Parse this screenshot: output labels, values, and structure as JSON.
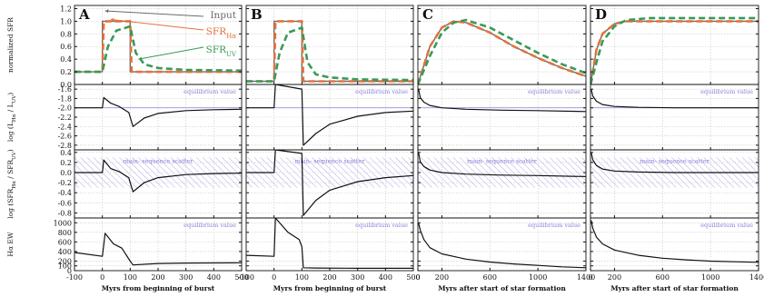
{
  "chart_data": {
    "type": "line",
    "rows": [
      {
        "ylabel": "normalized SFR",
        "ylim": [
          0,
          1.25
        ],
        "ticks": [
          0.0,
          0.2,
          0.4,
          0.6,
          0.8,
          1.0,
          1.2
        ],
        "tick_labels": [
          "0.0",
          "0.2",
          "0.4",
          "0.6",
          "0.8",
          "1.0",
          "1.2"
        ],
        "annotation": ""
      },
      {
        "ylabel": "log (LHα / LUV)",
        "ylim": [
          -2.9,
          -1.5
        ],
        "invert": true,
        "ticks": [
          -1.6,
          -1.8,
          -2.0,
          -2.2,
          -2.4,
          -2.6,
          -2.8
        ],
        "tick_labels": [
          "-1.6",
          "-1.8",
          "-2.0",
          "-2.2",
          "-2.4",
          "-2.6",
          "-2.8"
        ],
        "hline": -2.0,
        "annotation": "equilibrium value"
      },
      {
        "ylabel": "log (SFRHα / SFRUV)",
        "ylim": [
          -0.9,
          0.45
        ],
        "ticks": [
          0.4,
          0.2,
          0.0,
          -0.2,
          -0.4,
          -0.6,
          -0.8
        ],
        "tick_labels": [
          "0.4",
          "0.2",
          "0.0",
          "-0.2",
          "-0.4",
          "-0.6",
          "-0.8"
        ],
        "band": [
          -0.3,
          0.3
        ],
        "annotation": "main- sequence scatter"
      },
      {
        "ylabel": "Hα EW",
        "ylim": [
          0,
          1100
        ],
        "ticks": [
          0,
          100,
          200,
          400,
          600,
          800,
          1000
        ],
        "tick_labels": [
          "0",
          "100",
          "200",
          "400",
          "600",
          "800",
          "1000"
        ],
        "annotation": "equilibrium value"
      }
    ],
    "panels": [
      {
        "letter": "A",
        "xlim": [
          -100,
          500
        ],
        "xticks": [
          -100,
          0,
          100,
          200,
          300,
          400,
          500
        ],
        "xtick_labels": [
          "-100",
          "0",
          "100",
          "200",
          "300",
          "400",
          "500"
        ],
        "xlabel": "Myrs from beginning of burst",
        "series": [
          {
            "row": 0,
            "role": "input",
            "color": "#6a6a6a",
            "style": "solid",
            "x": [
              -100,
              0,
              0,
              100,
              100,
              500
            ],
            "y": [
              0.2,
              0.2,
              1.0,
              1.0,
              0.2,
              0.2
            ]
          },
          {
            "row": 0,
            "role": "halpha",
            "color": "#e8703a",
            "style": "dashed",
            "x": [
              -100,
              0,
              5,
              100,
              105,
              500
            ],
            "y": [
              0.2,
              0.2,
              1.0,
              1.0,
              0.2,
              0.2
            ]
          },
          {
            "row": 0,
            "role": "uv",
            "color": "#3a9a58",
            "style": "dashed",
            "x": [
              -100,
              0,
              20,
              50,
              100,
              120,
              150,
              200,
              300,
              500
            ],
            "y": [
              0.2,
              0.2,
              0.6,
              0.85,
              0.92,
              0.5,
              0.32,
              0.26,
              0.23,
              0.22
            ]
          },
          {
            "row": 1,
            "role": "ratio",
            "color": "#111111",
            "style": "solid",
            "x": [
              -100,
              0,
              5,
              30,
              60,
              95,
              100,
              110,
              150,
              200,
              300,
              400,
              500
            ],
            "y": [
              -2.0,
              -2.0,
              -1.78,
              -1.9,
              -1.97,
              -2.1,
              -2.2,
              -2.4,
              -2.22,
              -2.12,
              -2.06,
              -2.04,
              -2.03
            ]
          },
          {
            "row": 2,
            "role": "ratio",
            "color": "#111111",
            "style": "solid",
            "x": [
              -100,
              0,
              5,
              30,
              60,
              95,
              100,
              110,
              150,
              200,
              300,
              400,
              500
            ],
            "y": [
              0.0,
              0.0,
              0.25,
              0.08,
              0.02,
              -0.1,
              -0.2,
              -0.38,
              -0.2,
              -0.1,
              -0.04,
              -0.02,
              -0.01
            ]
          },
          {
            "row": 3,
            "role": "ew",
            "color": "#111111",
            "style": "solid",
            "x": [
              -100,
              0,
              10,
              40,
              70,
              100,
              110,
              200,
              300,
              500
            ],
            "y": [
              380,
              300,
              780,
              560,
              470,
              200,
              120,
              150,
              160,
              165
            ]
          }
        ]
      },
      {
        "letter": "B",
        "xlim": [
          -100,
          500
        ],
        "xticks": [
          -100,
          0,
          100,
          200,
          300,
          400,
          500
        ],
        "xtick_labels": [
          "-100",
          "0",
          "100",
          "200",
          "300",
          "400",
          "500"
        ],
        "xlabel": "Myrs from beginning of burst",
        "series": [
          {
            "row": 0,
            "role": "input",
            "color": "#6a6a6a",
            "style": "solid",
            "x": [
              -100,
              0,
              0,
              100,
              100,
              500
            ],
            "y": [
              0.05,
              0.05,
              1.0,
              1.0,
              0.05,
              0.05
            ]
          },
          {
            "row": 0,
            "role": "halpha",
            "color": "#e8703a",
            "style": "dashed",
            "x": [
              -100,
              0,
              5,
              100,
              105,
              500
            ],
            "y": [
              0.05,
              0.05,
              1.0,
              1.0,
              0.05,
              0.05
            ]
          },
          {
            "row": 0,
            "role": "uv",
            "color": "#3a9a58",
            "style": "dashed",
            "x": [
              -100,
              0,
              20,
              50,
              100,
              120,
              150,
              200,
              300,
              500
            ],
            "y": [
              0.05,
              0.05,
              0.5,
              0.82,
              0.9,
              0.35,
              0.16,
              0.11,
              0.08,
              0.07
            ]
          },
          {
            "row": 1,
            "role": "ratio",
            "color": "#111111",
            "style": "solid",
            "x": [
              -100,
              0,
              5,
              100,
              105,
              150,
              200,
              300,
              400,
              500
            ],
            "y": [
              -2.0,
              -2.0,
              -1.5,
              -1.6,
              -2.8,
              -2.55,
              -2.35,
              -2.18,
              -2.1,
              -2.07
            ]
          },
          {
            "row": 2,
            "role": "ratio",
            "color": "#111111",
            "style": "solid",
            "x": [
              -100,
              0,
              5,
              100,
              105,
              150,
              200,
              300,
              400,
              500
            ],
            "y": [
              0.0,
              0.0,
              0.45,
              0.38,
              -0.85,
              -0.55,
              -0.35,
              -0.18,
              -0.1,
              -0.06
            ]
          },
          {
            "row": 3,
            "role": "ew",
            "color": "#111111",
            "style": "solid",
            "x": [
              -100,
              0,
              5,
              50,
              90,
              100,
              105,
              150,
              300,
              500
            ],
            "y": [
              320,
              300,
              1100,
              800,
              650,
              500,
              60,
              55,
              50,
              50
            ]
          }
        ]
      },
      {
        "letter": "C",
        "xlim": [
          0,
          1400
        ],
        "xticks": [
          0,
          200,
          600,
          1000,
          1400
        ],
        "xtick_labels": [
          "0",
          "200",
          "600",
          "1000",
          "1400"
        ],
        "xlabel": "Myrs after start of star formation",
        "series": [
          {
            "row": 0,
            "role": "input",
            "color": "#6a6a6a",
            "style": "solid",
            "x": [
              0,
              100,
              200,
              300,
              400,
              600,
              800,
              1000,
              1200,
              1400
            ],
            "y": [
              0.0,
              0.6,
              0.9,
              1.0,
              0.98,
              0.82,
              0.6,
              0.42,
              0.26,
              0.13
            ]
          },
          {
            "row": 0,
            "role": "halpha",
            "color": "#e8703a",
            "style": "dashed",
            "x": [
              0,
              100,
              200,
              300,
              400,
              600,
              800,
              1000,
              1200,
              1400
            ],
            "y": [
              0.0,
              0.6,
              0.9,
              1.0,
              0.98,
              0.82,
              0.6,
              0.42,
              0.26,
              0.13
            ]
          },
          {
            "row": 0,
            "role": "uv",
            "color": "#3a9a58",
            "style": "dashed",
            "x": [
              0,
              100,
              200,
              300,
              400,
              600,
              800,
              1000,
              1200,
              1400
            ],
            "y": [
              0.0,
              0.45,
              0.82,
              0.98,
              1.02,
              0.9,
              0.7,
              0.5,
              0.32,
              0.18
            ]
          },
          {
            "row": 1,
            "role": "ratio",
            "color": "#111111",
            "style": "solid",
            "x": [
              5,
              20,
              50,
              100,
              200,
              400,
              700,
              1000,
              1400
            ],
            "y": [
              -1.6,
              -1.78,
              -1.88,
              -1.95,
              -2.0,
              -2.03,
              -2.05,
              -2.06,
              -2.08
            ]
          },
          {
            "row": 2,
            "role": "ratio",
            "color": "#111111",
            "style": "solid",
            "x": [
              5,
              20,
              50,
              100,
              200,
              400,
              700,
              1000,
              1400
            ],
            "y": [
              0.4,
              0.22,
              0.12,
              0.05,
              0.0,
              -0.03,
              -0.05,
              -0.06,
              -0.08
            ]
          },
          {
            "row": 3,
            "role": "ew",
            "color": "#111111",
            "style": "solid",
            "x": [
              5,
              20,
              50,
              100,
              200,
              400,
              600,
              800,
              1000,
              1200,
              1400
            ],
            "y": [
              1000,
              850,
              650,
              480,
              350,
              240,
              180,
              140,
              110,
              80,
              60
            ]
          }
        ]
      },
      {
        "letter": "D",
        "xlim": [
          0,
          1400
        ],
        "xticks": [
          0,
          200,
          600,
          1000,
          1400
        ],
        "xtick_labels": [
          "0",
          "200",
          "600",
          "1000",
          "1400"
        ],
        "xlabel": "Myrs after start of star formation",
        "series": [
          {
            "row": 0,
            "role": "input",
            "color": "#6a6a6a",
            "style": "solid",
            "x": [
              0,
              50,
              100,
              200,
              300,
              500,
              800,
              1400
            ],
            "y": [
              0.0,
              0.55,
              0.8,
              0.96,
              1.0,
              1.0,
              1.0,
              1.0
            ]
          },
          {
            "row": 0,
            "role": "halpha",
            "color": "#e8703a",
            "style": "dashed",
            "x": [
              0,
              50,
              100,
              200,
              300,
              500,
              800,
              1400
            ],
            "y": [
              0.0,
              0.55,
              0.8,
              0.96,
              1.0,
              1.0,
              1.0,
              1.0
            ]
          },
          {
            "row": 0,
            "role": "uv",
            "color": "#3a9a58",
            "style": "dashed",
            "x": [
              0,
              50,
              100,
              200,
              300,
              500,
              800,
              1400
            ],
            "y": [
              0.0,
              0.35,
              0.68,
              0.92,
              1.02,
              1.05,
              1.05,
              1.05
            ]
          },
          {
            "row": 1,
            "role": "ratio",
            "color": "#111111",
            "style": "solid",
            "x": [
              5,
              20,
              50,
              100,
              200,
              400,
              700,
              1000,
              1400
            ],
            "y": [
              -1.6,
              -1.75,
              -1.86,
              -1.93,
              -1.97,
              -1.99,
              -2.0,
              -2.0,
              -2.0
            ]
          },
          {
            "row": 2,
            "role": "ratio",
            "color": "#111111",
            "style": "solid",
            "x": [
              5,
              20,
              50,
              100,
              200,
              400,
              700,
              1000,
              1400
            ],
            "y": [
              0.4,
              0.25,
              0.14,
              0.07,
              0.03,
              0.01,
              0.0,
              0.0,
              0.0
            ]
          },
          {
            "row": 3,
            "role": "ew",
            "color": "#111111",
            "style": "solid",
            "x": [
              5,
              20,
              50,
              100,
              200,
              400,
              600,
              800,
              1000,
              1200,
              1400
            ],
            "y": [
              1050,
              880,
              700,
              560,
              430,
              320,
              260,
              225,
              200,
              185,
              175
            ]
          }
        ]
      }
    ],
    "legend": {
      "panel": 0,
      "entries": [
        {
          "label": "Input",
          "sub": "",
          "role": "input"
        },
        {
          "label": "SFR",
          "sub": "Hα",
          "role": "halpha"
        },
        {
          "label": "SFR",
          "sub": "UV",
          "role": "uv"
        }
      ]
    },
    "colors": {
      "band": "#9b8fe0",
      "equilibrium": "#9b8fe0",
      "grid": "#c9c9c9"
    }
  }
}
